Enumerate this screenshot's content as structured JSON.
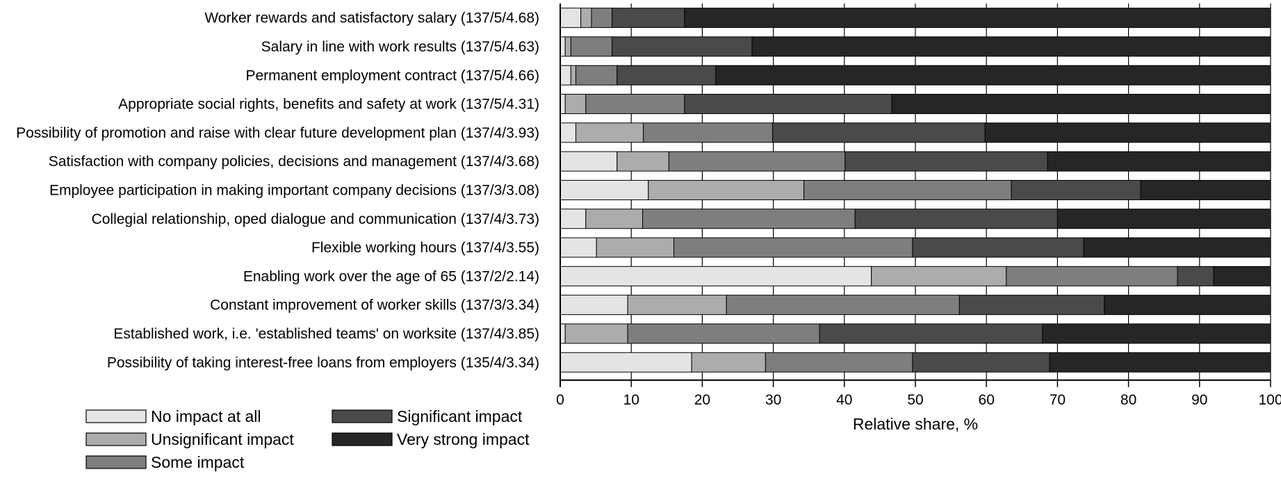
{
  "chart_data": {
    "type": "bar",
    "orientation": "horizontal",
    "stacked": true,
    "xlabel": "Relative share, %",
    "xlim": [
      0,
      100
    ],
    "xticks": [
      0,
      10,
      20,
      30,
      40,
      50,
      60,
      70,
      80,
      90,
      100
    ],
    "grid": true,
    "legend_position": "bottom-left",
    "categories": [
      "Worker rewards and satisfactory salary (137/5/4.68)",
      "Salary in line with work results (137/5/4.63)",
      "Permanent employment contract (137/5/4.66)",
      "Appropriate social rights, benefits and safety at work (137/5/4.31)",
      "Possibility of promotion and raise with clear future development plan (137/4/3.93)",
      "Satisfaction with company policies, decisions and management (137/4/3.68)",
      "Employee participation in making important company decisions (137/3/3.08)",
      "Collegial relationship, oped dialogue and communication (137/4/3.73)",
      "Flexible working hours (137/4/3.55)",
      "Enabling work over the age of 65 (137/2/2.14)",
      "Constant improvement of worker skills (137/3/3.34)",
      "Established work, i.e. 'established teams' on worksite (137/4/3.85)",
      "Possibility of taking interest-free loans from employers (135/4/3.34)"
    ],
    "series": [
      {
        "name": "No impact at all",
        "color": "#e4e4e4",
        "values": [
          2.9,
          0.7,
          1.5,
          0.7,
          2.2,
          8.0,
          12.4,
          3.6,
          5.1,
          43.8,
          9.5,
          0.7,
          18.5
        ]
      },
      {
        "name": "Unsignificant impact",
        "color": "#acacac",
        "values": [
          1.5,
          0.8,
          0.7,
          2.9,
          9.5,
          7.3,
          21.9,
          8.0,
          10.9,
          19.0,
          13.9,
          8.8,
          10.4
        ]
      },
      {
        "name": "Some impact",
        "color": "#7e7e7e",
        "values": [
          2.9,
          5.8,
          5.8,
          13.9,
          18.2,
          24.8,
          29.2,
          29.9,
          33.6,
          24.1,
          32.8,
          27.0,
          20.7
        ]
      },
      {
        "name": "Significant impact",
        "color": "#4a4a4a",
        "values": [
          10.2,
          19.7,
          13.9,
          29.2,
          29.9,
          28.5,
          18.2,
          28.5,
          24.1,
          5.1,
          20.4,
          31.4,
          19.3
        ]
      },
      {
        "name": "Very strong impact",
        "color": "#262626",
        "values": [
          82.5,
          73.0,
          78.1,
          53.3,
          40.2,
          31.4,
          18.3,
          30.0,
          26.3,
          8.0,
          23.4,
          32.1,
          31.1
        ]
      }
    ]
  }
}
